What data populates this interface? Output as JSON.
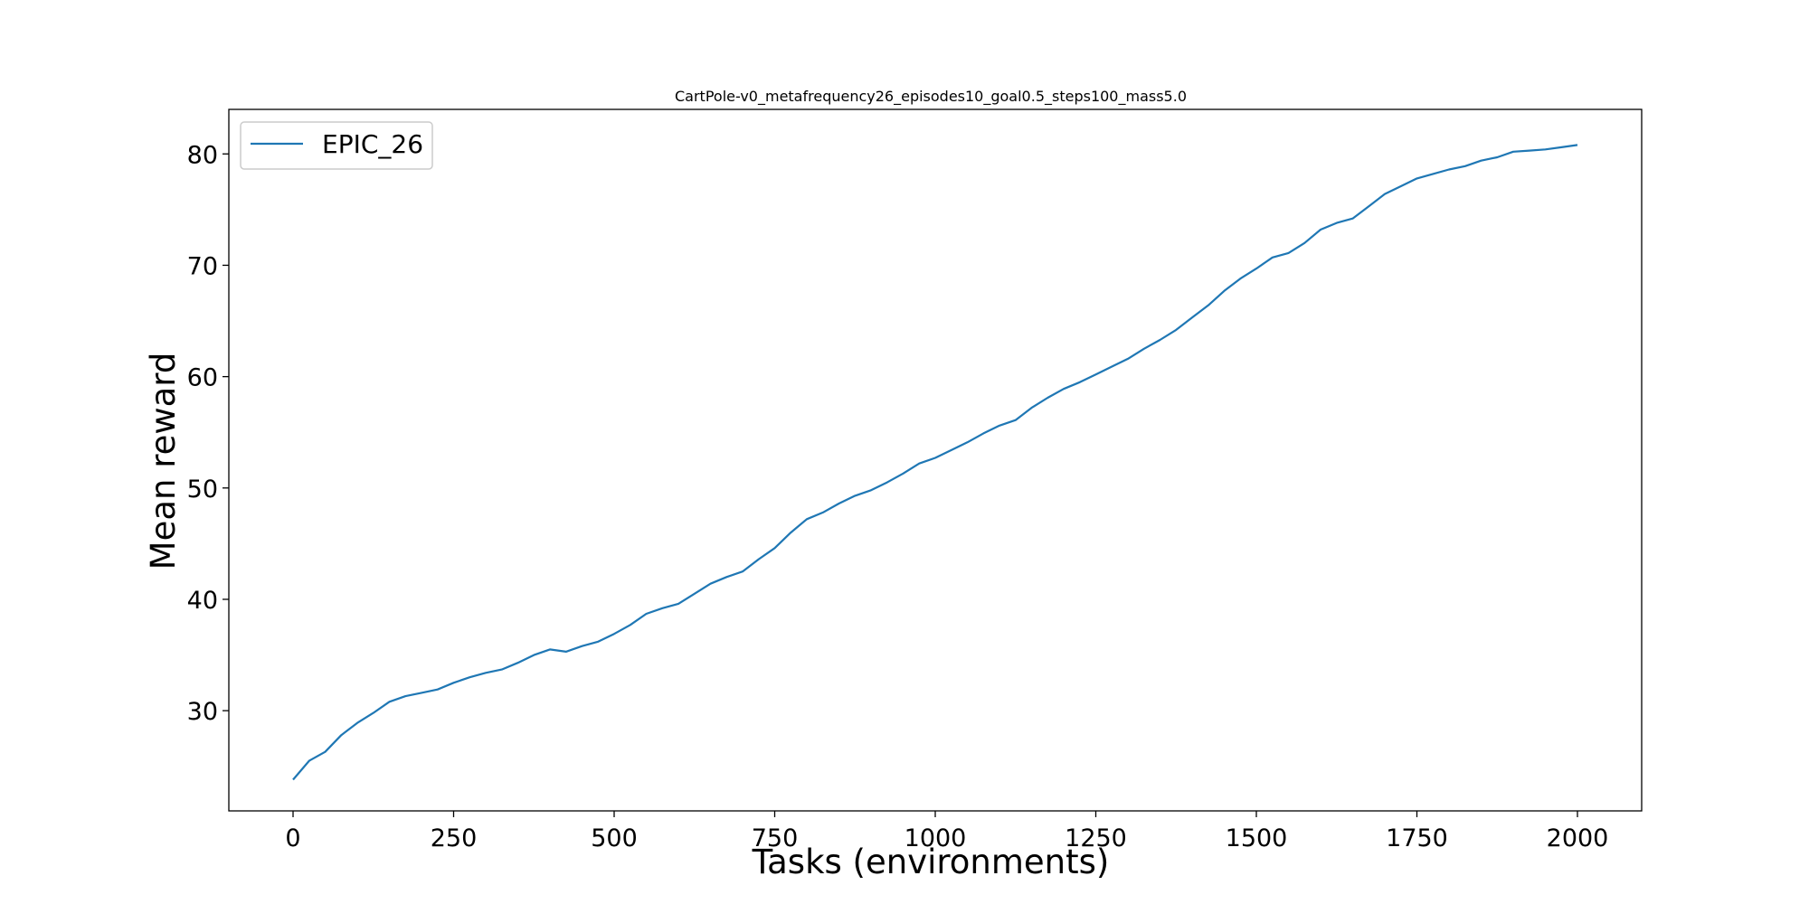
{
  "chart_data": {
    "type": "line",
    "title": "CartPole-v0_metafrequency26_episodes10_goal0.5_steps100_mass5.0",
    "xlabel": "Tasks (environments)",
    "ylabel": "Mean reward",
    "xlim": [
      -100,
      2100
    ],
    "ylim": [
      21,
      84
    ],
    "xticks": [
      0,
      250,
      500,
      750,
      1000,
      1250,
      1500,
      1750,
      2000
    ],
    "yticks": [
      30,
      40,
      50,
      60,
      70,
      80
    ],
    "xtick_labels": [
      "0",
      "250",
      "500",
      "750",
      "1000",
      "1250",
      "1500",
      "1750",
      "2000"
    ],
    "ytick_labels": [
      "30",
      "40",
      "50",
      "60",
      "70",
      "80"
    ],
    "grid": false,
    "legend_position": "top-left",
    "series": [
      {
        "name": "EPIC_26",
        "color": "#1f77b4",
        "x": [
          0,
          25,
          50,
          75,
          100,
          125,
          150,
          175,
          200,
          225,
          250,
          275,
          300,
          325,
          350,
          375,
          400,
          425,
          450,
          475,
          500,
          525,
          550,
          575,
          600,
          625,
          650,
          675,
          700,
          725,
          750,
          775,
          800,
          825,
          850,
          875,
          900,
          925,
          950,
          975,
          1000,
          1025,
          1050,
          1075,
          1100,
          1125,
          1150,
          1175,
          1200,
          1225,
          1250,
          1275,
          1300,
          1325,
          1350,
          1375,
          1400,
          1425,
          1450,
          1475,
          1500,
          1525,
          1550,
          1575,
          1600,
          1625,
          1650,
          1675,
          1700,
          1725,
          1750,
          1775,
          1800,
          1825,
          1850,
          1875,
          1900,
          1925,
          1950,
          1975,
          2000
        ],
        "y": [
          23.8,
          25.5,
          26.3,
          27.8,
          28.9,
          29.8,
          30.8,
          31.3,
          31.6,
          31.9,
          32.5,
          33.0,
          33.4,
          33.7,
          34.3,
          35.0,
          35.5,
          35.3,
          35.8,
          36.2,
          36.9,
          37.7,
          38.7,
          39.2,
          39.6,
          40.5,
          41.4,
          42.0,
          42.5,
          43.6,
          44.6,
          46.0,
          47.2,
          47.8,
          48.6,
          49.3,
          49.8,
          50.5,
          51.3,
          52.2,
          52.7,
          53.4,
          54.1,
          54.9,
          55.6,
          56.1,
          57.2,
          58.1,
          58.9,
          59.5,
          60.2,
          60.9,
          61.6,
          62.5,
          63.3,
          64.2,
          65.3,
          66.4,
          67.7,
          68.8,
          69.7,
          70.7,
          71.1,
          72.0,
          73.2,
          73.8,
          74.2,
          75.3,
          76.4,
          77.1,
          77.8,
          78.2,
          78.6,
          78.9,
          79.4,
          79.7,
          80.2,
          80.3,
          80.4,
          80.6,
          80.8
        ]
      }
    ]
  }
}
